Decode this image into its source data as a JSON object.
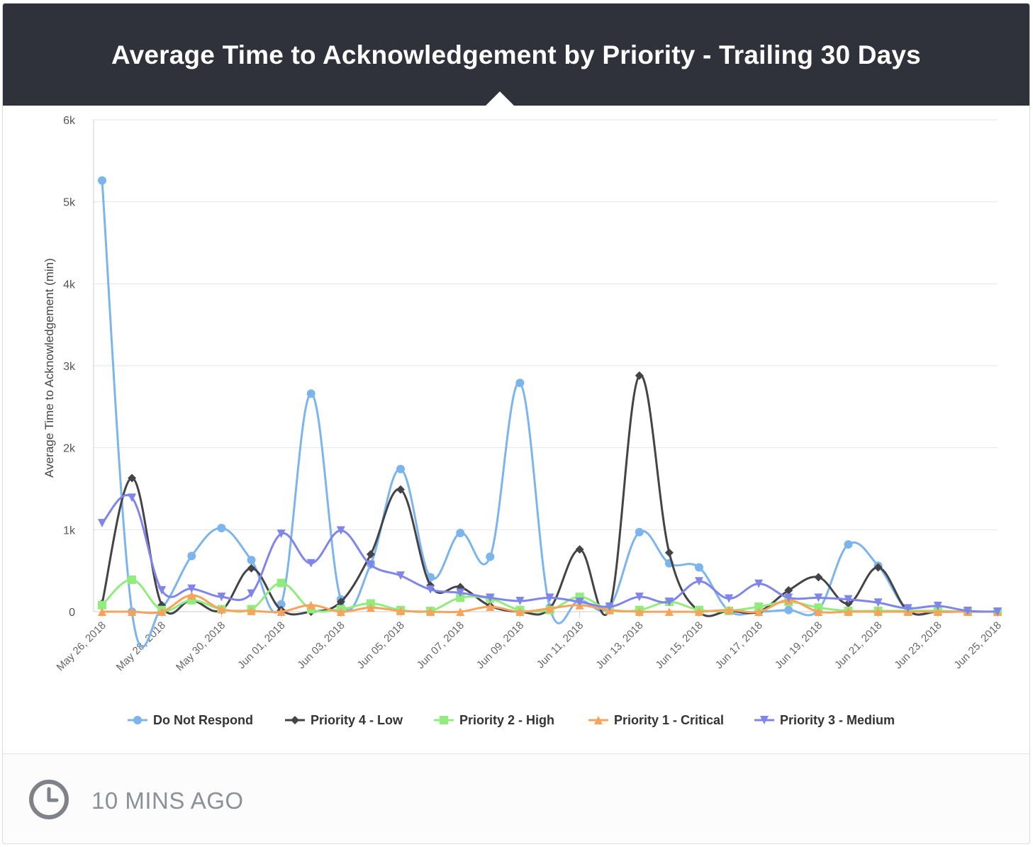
{
  "header": {
    "title": "Average Time to Acknowledgement by Priority - Trailing 30 Days"
  },
  "footer": {
    "updated_label": "10 MINS AGO",
    "icon": "clock-icon"
  },
  "chart_data": {
    "type": "line",
    "ylabel": "Average Time to Acknowledgement (min)",
    "xlabel": "",
    "ylim": [
      0,
      6000
    ],
    "yticks": [
      0,
      1000,
      2000,
      3000,
      4000,
      5000,
      6000
    ],
    "ytick_labels": [
      "0",
      "1k",
      "2k",
      "3k",
      "4k",
      "5k",
      "6k"
    ],
    "x": [
      "May 26, 2018",
      "May 27, 2018",
      "May 28, 2018",
      "May 29, 2018",
      "May 30, 2018",
      "May 31, 2018",
      "Jun 01, 2018",
      "Jun 02, 2018",
      "Jun 03, 2018",
      "Jun 04, 2018",
      "Jun 05, 2018",
      "Jun 06, 2018",
      "Jun 07, 2018",
      "Jun 08, 2018",
      "Jun 09, 2018",
      "Jun 10, 2018",
      "Jun 11, 2018",
      "Jun 12, 2018",
      "Jun 13, 2018",
      "Jun 14, 2018",
      "Jun 15, 2018",
      "Jun 16, 2018",
      "Jun 17, 2018",
      "Jun 18, 2018",
      "Jun 19, 2018",
      "Jun 20, 2018",
      "Jun 21, 2018",
      "Jun 22, 2018",
      "Jun 23, 2018",
      "Jun 24, 2018",
      "Jun 25, 2018"
    ],
    "xtick_labels": [
      "May 26, 2018",
      "May 28, 2018",
      "May 30, 2018",
      "Jun 01, 2018",
      "Jun 03, 2018",
      "Jun 05, 2018",
      "Jun 07, 2018",
      "Jun 09, 2018",
      "Jun 11, 2018",
      "Jun 13, 2018",
      "Jun 15, 2018",
      "Jun 17, 2018",
      "Jun 19, 2018",
      "Jun 21, 2018",
      "Jun 23, 2018",
      "Jun 25, 2018"
    ],
    "legend_position": "bottom",
    "grid": true,
    "series": [
      {
        "name": "Do Not Respond",
        "color": "#7cb5ec",
        "marker": "circle",
        "values": [
          5260,
          0,
          50,
          680,
          1020,
          630,
          90,
          2660,
          150,
          580,
          1740,
          420,
          960,
          670,
          2790,
          50,
          140,
          60,
          970,
          590,
          540,
          10,
          0,
          20,
          20,
          820,
          560,
          10,
          0,
          0,
          0
        ]
      },
      {
        "name": "Priority 4 - Low",
        "color": "#434348",
        "marker": "diamond",
        "values": [
          100,
          1630,
          80,
          140,
          20,
          530,
          20,
          0,
          120,
          700,
          1490,
          320,
          300,
          70,
          0,
          40,
          760,
          40,
          2880,
          720,
          0,
          10,
          0,
          260,
          420,
          100,
          540,
          10,
          0,
          0,
          0
        ]
      },
      {
        "name": "Priority 2 - High",
        "color": "#90ed7d",
        "marker": "square",
        "values": [
          80,
          390,
          20,
          140,
          30,
          30,
          350,
          30,
          30,
          100,
          20,
          10,
          170,
          160,
          20,
          20,
          180,
          20,
          20,
          120,
          20,
          10,
          60,
          120,
          50,
          10,
          10,
          10,
          10,
          0,
          0
        ]
      },
      {
        "name": "Priority 1 - Critical",
        "color": "#f7a35c",
        "marker": "triangle",
        "values": [
          0,
          0,
          0,
          200,
          30,
          10,
          0,
          80,
          0,
          50,
          10,
          0,
          0,
          60,
          0,
          40,
          80,
          20,
          0,
          0,
          0,
          20,
          0,
          140,
          0,
          0,
          0,
          0,
          0,
          0,
          0
        ]
      },
      {
        "name": "Priority 3 - Medium",
        "color": "#8085e9",
        "marker": "triangle-down",
        "values": [
          1080,
          1390,
          260,
          280,
          180,
          220,
          950,
          590,
          990,
          570,
          440,
          270,
          230,
          170,
          130,
          170,
          120,
          60,
          180,
          120,
          370,
          160,
          340,
          170,
          170,
          150,
          110,
          40,
          70,
          10,
          0
        ]
      }
    ]
  }
}
